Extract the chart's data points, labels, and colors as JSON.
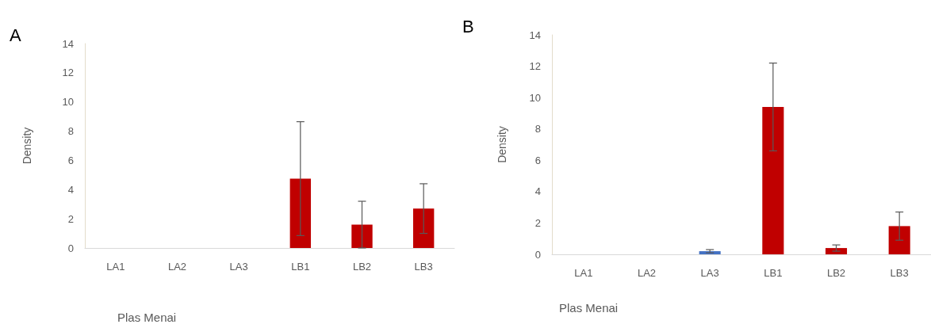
{
  "chart_data": [
    {
      "type": "bar",
      "title": "A",
      "ylabel": "Density",
      "categories": [
        "LA1",
        "LA2",
        "LA3",
        "LB1",
        "LB2",
        "LB3"
      ],
      "values": [
        0,
        0,
        0,
        4.75,
        1.6,
        2.7
      ],
      "errors": [
        null,
        null,
        null,
        3.9,
        1.6,
        1.7
      ],
      "color": "#c00000",
      "ylim": [
        0,
        14
      ],
      "yticks": [
        0,
        2,
        4,
        6,
        8,
        10,
        12,
        14
      ],
      "annotations": [
        "Plas Menai"
      ]
    },
    {
      "type": "bar",
      "title": "B",
      "ylabel": "Density",
      "categories": [
        "LA1",
        "LA2",
        "LA3",
        "LB1",
        "LB2",
        "LB3"
      ],
      "values": [
        0,
        0,
        0.2,
        9.4,
        0.4,
        1.8
      ],
      "errors": [
        null,
        null,
        0.1,
        2.8,
        0.2,
        0.9
      ],
      "colors": [
        "#4472c4",
        "#4472c4",
        "#4472c4",
        "#c00000",
        "#c00000",
        "#c00000"
      ],
      "ylim": [
        0,
        14
      ],
      "yticks": [
        0,
        2,
        4,
        6,
        8,
        10,
        12,
        14
      ],
      "annotations": [
        "Plas Menai"
      ]
    }
  ]
}
